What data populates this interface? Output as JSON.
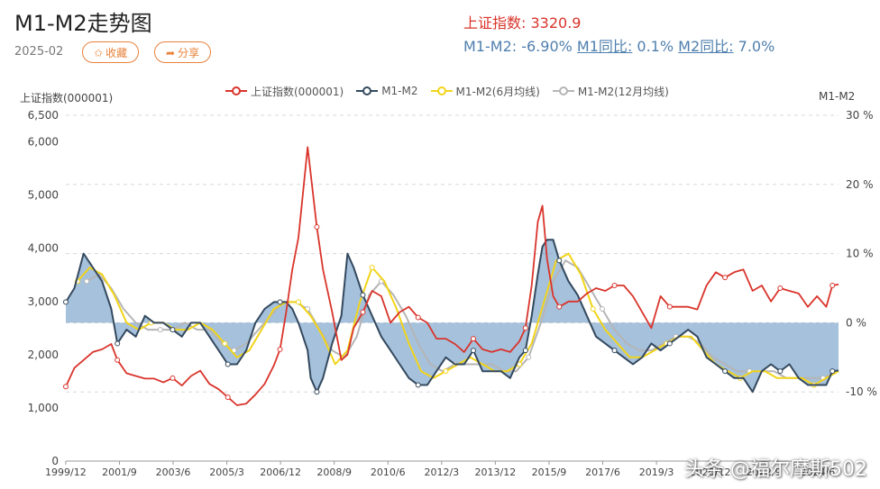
{
  "header": {
    "title": "M1-M2走势图",
    "date": "2025-02",
    "collect_label": "收藏",
    "share_label": "分享",
    "index_label": "上证指数: 3320.9",
    "m1m2_label": "M1-M2: -6.90%",
    "m1_label": "M1同比:",
    "m1_value": "0.1%",
    "m2_label": "M2同比:",
    "m2_value": "7.0%"
  },
  "axes": {
    "left_title": "上证指数(000001)",
    "right_title": "M1-M2"
  },
  "watermark": "头条 @福尔摩斯502",
  "colors": {
    "index": "#d9342b",
    "m1m2": "#34495e",
    "ma6": "#f2d41a",
    "ma12": "#b5b5b5",
    "area": "#5b8ebf"
  },
  "chart_data": {
    "type": "line",
    "title": "M1-M2走势图",
    "x_ticks": [
      "1999/12",
      "2001/9",
      "2003/6",
      "2005/3",
      "2006/12",
      "2008/9",
      "2010/6",
      "2012/3",
      "2013/12",
      "2015/9",
      "2017/6",
      "2019/3",
      "2020/12",
      "2022/9",
      "2024/6"
    ],
    "x_range": [
      1999.92,
      2025.1
    ],
    "y_left": {
      "label": "上证指数(000001)",
      "range": [
        0,
        6500
      ],
      "ticks": [
        0,
        1000,
        2000,
        3000,
        4000,
        5000,
        6000,
        6500
      ],
      "tick_labels": [
        "0",
        "1,000",
        "2,000",
        "3,000",
        "4,000",
        "5,000",
        "6,000",
        "6,500"
      ]
    },
    "y_right": {
      "label": "M1-M2",
      "range": [
        -20,
        30
      ],
      "ticks": [
        -10,
        0,
        10,
        20,
        30
      ],
      "tick_labels": [
        "-10 %",
        "0 %",
        "10 %",
        "20 %",
        "30 %"
      ]
    },
    "grid": true,
    "legend_position": "top",
    "series": [
      {
        "name": "上证指数(000001)",
        "axis": "left",
        "x": [
          1999.92,
          2000.2,
          2000.5,
          2000.8,
          2001.1,
          2001.4,
          2001.6,
          2001.9,
          2002.2,
          2002.5,
          2002.8,
          2003.1,
          2003.4,
          2003.7,
          2004.0,
          2004.3,
          2004.6,
          2004.9,
          2005.2,
          2005.5,
          2005.8,
          2006.1,
          2006.4,
          2006.7,
          2006.9,
          2007.1,
          2007.3,
          2007.5,
          2007.8,
          2007.9,
          2008.1,
          2008.3,
          2008.6,
          2008.9,
          2009.1,
          2009.3,
          2009.6,
          2009.9,
          2010.2,
          2010.5,
          2010.8,
          2011.1,
          2011.4,
          2011.7,
          2012.0,
          2012.3,
          2012.6,
          2012.9,
          2013.2,
          2013.5,
          2013.8,
          2014.1,
          2014.4,
          2014.7,
          2014.9,
          2015.1,
          2015.3,
          2015.45,
          2015.6,
          2015.8,
          2016.0,
          2016.3,
          2016.6,
          2016.9,
          2017.2,
          2017.5,
          2017.8,
          2018.1,
          2018.4,
          2018.7,
          2019.0,
          2019.3,
          2019.6,
          2019.9,
          2020.2,
          2020.5,
          2020.8,
          2021.1,
          2021.4,
          2021.7,
          2022.0,
          2022.3,
          2022.6,
          2022.9,
          2023.2,
          2023.5,
          2023.8,
          2024.1,
          2024.4,
          2024.7,
          2024.9,
          2025.1
        ],
        "y": [
          1400,
          1750,
          1900,
          2050,
          2100,
          2200,
          1900,
          1650,
          1600,
          1550,
          1550,
          1480,
          1560,
          1420,
          1600,
          1700,
          1450,
          1350,
          1200,
          1050,
          1080,
          1250,
          1450,
          1800,
          2100,
          2800,
          3600,
          4200,
          5900,
          5400,
          4400,
          3600,
          2800,
          1900,
          2000,
          2500,
          2800,
          3200,
          3100,
          2600,
          2800,
          2900,
          2700,
          2600,
          2300,
          2300,
          2200,
          2050,
          2300,
          2100,
          2050,
          2100,
          2050,
          2250,
          2500,
          3300,
          4500,
          4800,
          3800,
          3100,
          2900,
          3000,
          3000,
          3150,
          3250,
          3200,
          3300,
          3300,
          3100,
          2800,
          2500,
          3100,
          2900,
          2900,
          2900,
          2850,
          3300,
          3550,
          3450,
          3550,
          3600,
          3200,
          3300,
          3000,
          3250,
          3200,
          3150,
          2900,
          3100,
          2900,
          3300,
          3320.9
        ]
      },
      {
        "name": "M1-M2",
        "axis": "right",
        "x": [
          1999.92,
          2000.2,
          2000.5,
          2000.8,
          2001.1,
          2001.4,
          2001.6,
          2001.9,
          2002.2,
          2002.5,
          2002.8,
          2003.1,
          2003.4,
          2003.7,
          2004.0,
          2004.3,
          2004.6,
          2004.9,
          2005.2,
          2005.5,
          2005.8,
          2006.1,
          2006.4,
          2006.7,
          2006.9,
          2007.1,
          2007.3,
          2007.5,
          2007.8,
          2007.9,
          2008.1,
          2008.3,
          2008.6,
          2008.9,
          2009.1,
          2009.3,
          2009.6,
          2009.9,
          2010.2,
          2010.5,
          2010.8,
          2011.1,
          2011.4,
          2011.7,
          2012.0,
          2012.3,
          2012.6,
          2012.9,
          2013.2,
          2013.5,
          2013.8,
          2014.1,
          2014.4,
          2014.7,
          2014.9,
          2015.1,
          2015.3,
          2015.45,
          2015.6,
          2015.8,
          2016.0,
          2016.3,
          2016.6,
          2016.9,
          2017.2,
          2017.5,
          2017.8,
          2018.1,
          2018.4,
          2018.7,
          2019.0,
          2019.3,
          2019.6,
          2019.9,
          2020.2,
          2020.5,
          2020.8,
          2021.1,
          2021.4,
          2021.7,
          2022.0,
          2022.3,
          2022.6,
          2022.9,
          2023.2,
          2023.5,
          2023.8,
          2024.1,
          2024.4,
          2024.7,
          2024.9,
          2025.1
        ],
        "y": [
          3,
          5,
          10,
          8,
          6,
          2,
          -3,
          -1,
          -2,
          1,
          0,
          0,
          -1,
          -2,
          0,
          0,
          -2,
          -4,
          -6,
          -6,
          -4,
          0,
          2,
          3,
          3,
          3,
          2,
          0,
          -4,
          -8,
          -10,
          -8,
          -3,
          1,
          10,
          8,
          4,
          1,
          -2,
          -4,
          -6,
          -8,
          -9,
          -9,
          -7,
          -5,
          -6,
          -6,
          -4,
          -7,
          -7,
          -7,
          -8,
          -5,
          -4,
          1,
          7,
          11,
          12,
          12,
          9,
          6,
          4,
          1,
          -2,
          -3,
          -4,
          -5,
          -6,
          -5,
          -3,
          -4,
          -3,
          -2,
          -1,
          -2,
          -5,
          -6,
          -7,
          -8,
          -8,
          -10,
          -7,
          -6,
          -7,
          -6,
          -8,
          -9,
          -9,
          -9,
          -7,
          -6.9
        ]
      },
      {
        "name": "M1-M2(6月均线)",
        "axis": "right",
        "x": [
          2000.3,
          2000.7,
          2001.1,
          2001.5,
          2001.9,
          2002.3,
          2002.7,
          2003.1,
          2003.5,
          2003.9,
          2004.3,
          2004.7,
          2005.1,
          2005.5,
          2005.9,
          2006.3,
          2006.7,
          2007.1,
          2007.5,
          2007.9,
          2008.3,
          2008.7,
          2009.1,
          2009.5,
          2009.9,
          2010.3,
          2010.7,
          2011.1,
          2011.5,
          2011.9,
          2012.3,
          2012.7,
          2013.1,
          2013.5,
          2013.9,
          2014.3,
          2014.7,
          2015.1,
          2015.5,
          2015.9,
          2016.3,
          2016.7,
          2017.1,
          2017.5,
          2017.9,
          2018.3,
          2018.7,
          2019.1,
          2019.5,
          2019.9,
          2020.3,
          2020.7,
          2021.1,
          2021.5,
          2021.9,
          2022.3,
          2022.7,
          2023.1,
          2023.5,
          2023.9,
          2024.3,
          2024.7,
          2025.1
        ],
        "y": [
          6,
          8,
          7,
          4,
          0,
          -1,
          0,
          0,
          -1,
          -1,
          0,
          -1,
          -3,
          -5,
          -4,
          -1,
          2,
          3,
          3,
          1,
          -2,
          -6,
          -4,
          3,
          8,
          6,
          2,
          -3,
          -7,
          -8,
          -7,
          -6,
          -5,
          -6,
          -7,
          -7,
          -6,
          -3,
          3,
          9,
          10,
          7,
          2,
          -1,
          -3,
          -5,
          -5,
          -4,
          -3,
          -2,
          -2,
          -4,
          -6,
          -7,
          -8,
          -7,
          -7,
          -8,
          -8,
          -8,
          -9,
          -8,
          -7
        ]
      },
      {
        "name": "M1-M2(12月均线)",
        "axis": "right",
        "x": [
          2000.6,
          2001.0,
          2001.4,
          2001.8,
          2002.2,
          2002.6,
          2003.0,
          2003.4,
          2003.8,
          2004.2,
          2004.6,
          2005.0,
          2005.4,
          2005.8,
          2006.2,
          2006.6,
          2007.0,
          2007.4,
          2007.8,
          2008.2,
          2008.6,
          2009.0,
          2009.4,
          2009.8,
          2010.2,
          2010.6,
          2011.0,
          2011.4,
          2011.8,
          2012.2,
          2012.6,
          2013.0,
          2013.4,
          2013.8,
          2014.2,
          2014.6,
          2015.0,
          2015.4,
          2015.8,
          2016.2,
          2016.6,
          2017.0,
          2017.4,
          2017.8,
          2018.2,
          2018.6,
          2019.0,
          2019.4,
          2019.8,
          2020.2,
          2020.6,
          2021.0,
          2021.4,
          2021.8,
          2022.2,
          2022.6,
          2023.0,
          2023.4,
          2023.8,
          2024.2,
          2024.6,
          2025.1
        ],
        "y": [
          6,
          7,
          5,
          2,
          0,
          -1,
          -1,
          -1,
          0,
          -1,
          -1,
          -3,
          -4,
          -3,
          -1,
          1,
          3,
          3,
          2,
          -1,
          -4,
          -5,
          -2,
          4,
          6,
          4,
          1,
          -3,
          -6,
          -7,
          -6,
          -6,
          -6,
          -6,
          -7,
          -7,
          -5,
          0,
          6,
          9,
          8,
          5,
          2,
          -1,
          -3,
          -4,
          -4,
          -3,
          -2,
          -2,
          -3,
          -5,
          -6,
          -7,
          -7,
          -7,
          -7,
          -8,
          -8,
          -8,
          -8,
          -7
        ]
      }
    ]
  }
}
